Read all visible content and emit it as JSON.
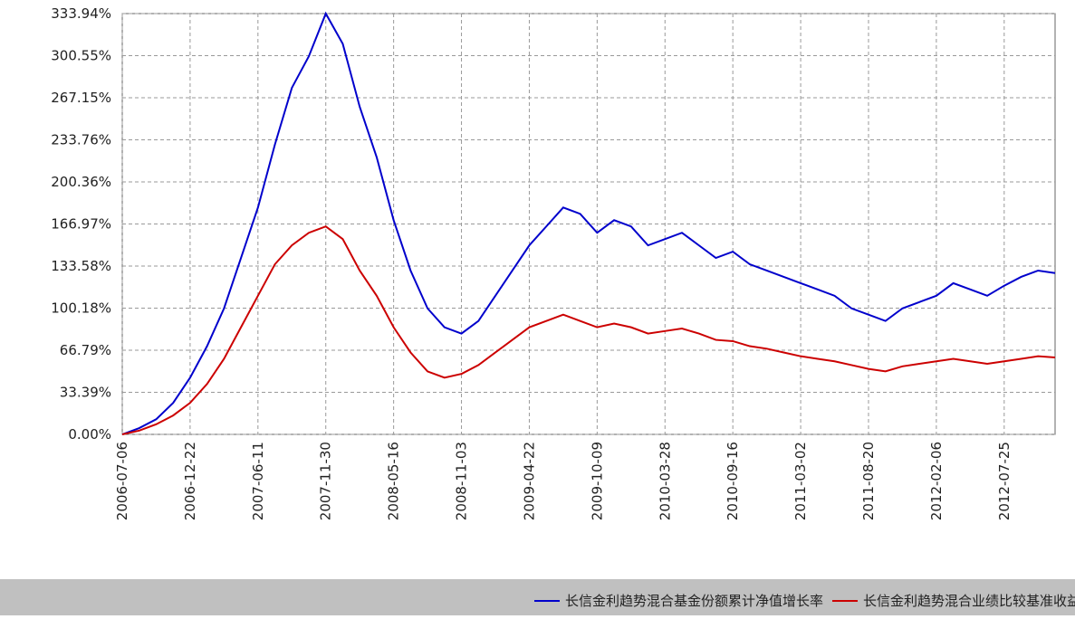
{
  "chart_data": {
    "type": "line",
    "categories": [
      "2006-07-06",
      null,
      null,
      null,
      "2006-12-22",
      null,
      null,
      null,
      "2007-06-11",
      null,
      null,
      null,
      "2007-11-30",
      null,
      null,
      null,
      "2008-05-16",
      null,
      null,
      null,
      "2008-11-03",
      null,
      null,
      null,
      "2009-04-22",
      null,
      null,
      null,
      "2009-10-09",
      null,
      null,
      null,
      "2010-03-28",
      null,
      null,
      null,
      "2010-09-16",
      null,
      null,
      null,
      "2011-03-02",
      null,
      null,
      null,
      "2011-08-20",
      null,
      null,
      null,
      "2012-02-06",
      null,
      null,
      null,
      "2012-07-25",
      null,
      null,
      null
    ],
    "series": [
      {
        "name": "长信金利趋势混合基金份额累计净值增长率",
        "color": "#0000cc",
        "values": [
          0,
          5,
          12,
          25,
          45,
          70,
          100,
          140,
          180,
          230,
          275,
          300,
          333.94,
          310,
          260,
          220,
          170,
          130,
          100,
          85,
          80,
          90,
          110,
          130,
          150,
          165,
          180,
          175,
          160,
          170,
          165,
          150,
          155,
          160,
          150,
          140,
          145,
          135,
          130,
          125,
          120,
          115,
          110,
          100,
          95,
          90,
          100,
          105,
          110,
          120,
          115,
          110,
          118,
          125,
          130,
          128
        ]
      },
      {
        "name": "长信金利趋势混合业绩比较基准收益率",
        "color": "#cc0000",
        "values": [
          0,
          3,
          8,
          15,
          25,
          40,
          60,
          85,
          110,
          135,
          150,
          160,
          165,
          155,
          130,
          110,
          85,
          65,
          50,
          45,
          48,
          55,
          65,
          75,
          85,
          90,
          95,
          90,
          85,
          88,
          85,
          80,
          82,
          84,
          80,
          75,
          74,
          70,
          68,
          65,
          62,
          60,
          58,
          55,
          52,
          50,
          54,
          56,
          58,
          60,
          58,
          56,
          58,
          60,
          62,
          61
        ]
      }
    ],
    "ylim": [
      0,
      333.94
    ],
    "yticks": [
      {
        "value": 0,
        "label": "0.00%"
      },
      {
        "value": 33.39,
        "label": "33.39%"
      },
      {
        "value": 66.79,
        "label": "66.79%"
      },
      {
        "value": 100.18,
        "label": "100.18%"
      },
      {
        "value": 133.58,
        "label": "133.58%"
      },
      {
        "value": 166.97,
        "label": "166.97%"
      },
      {
        "value": 200.36,
        "label": "200.36%"
      },
      {
        "value": 233.76,
        "label": "233.76%"
      },
      {
        "value": 267.15,
        "label": "267.15%"
      },
      {
        "value": 300.55,
        "label": "300.55%"
      },
      {
        "value": 333.94,
        "label": "333.94%"
      }
    ],
    "grid": true
  }
}
